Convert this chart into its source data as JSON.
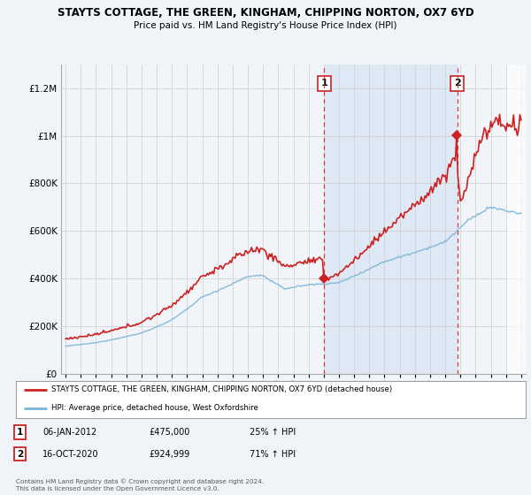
{
  "title": "STAYTS COTTAGE, THE GREEN, KINGHAM, CHIPPING NORTON, OX7 6YD",
  "subtitle": "Price paid vs. HM Land Registry's House Price Index (HPI)",
  "background_color": "#f0f4f8",
  "plot_bg_color": "#f0f4f8",
  "shaded_bg": "#dce8f5",
  "legend_line1": "STAYTS COTTAGE, THE GREEN, KINGHAM, CHIPPING NORTON, OX7 6YD (detached house)",
  "legend_line2": "HPI: Average price, detached house, West Oxfordshire",
  "annotation1": {
    "label": "1",
    "date": "06-JAN-2012",
    "price": "£475,000",
    "hpi": "25% ↑ HPI"
  },
  "annotation2": {
    "label": "2",
    "date": "16-OCT-2020",
    "price": "£924,999",
    "hpi": "71% ↑ HPI"
  },
  "footer": "Contains HM Land Registry data © Crown copyright and database right 2024.\nThis data is licensed under the Open Government Licence v3.0.",
  "hpi_color": "#7ab4d8",
  "property_color": "#cc2222",
  "sale1_x": 2012.03,
  "sale1_y": 475000,
  "sale2_x": 2020.79,
  "sale2_y": 924999,
  "ylim": [
    0,
    1300000
  ],
  "xlim": [
    1994.7,
    2025.3
  ],
  "yticks": [
    0,
    200000,
    400000,
    600000,
    800000,
    1000000,
    1200000
  ],
  "xticks": [
    1995,
    1996,
    1997,
    1998,
    1999,
    2000,
    2001,
    2002,
    2003,
    2004,
    2005,
    2006,
    2007,
    2008,
    2009,
    2010,
    2011,
    2012,
    2013,
    2014,
    2015,
    2016,
    2017,
    2018,
    2019,
    2020,
    2021,
    2022,
    2023,
    2024,
    2025
  ]
}
